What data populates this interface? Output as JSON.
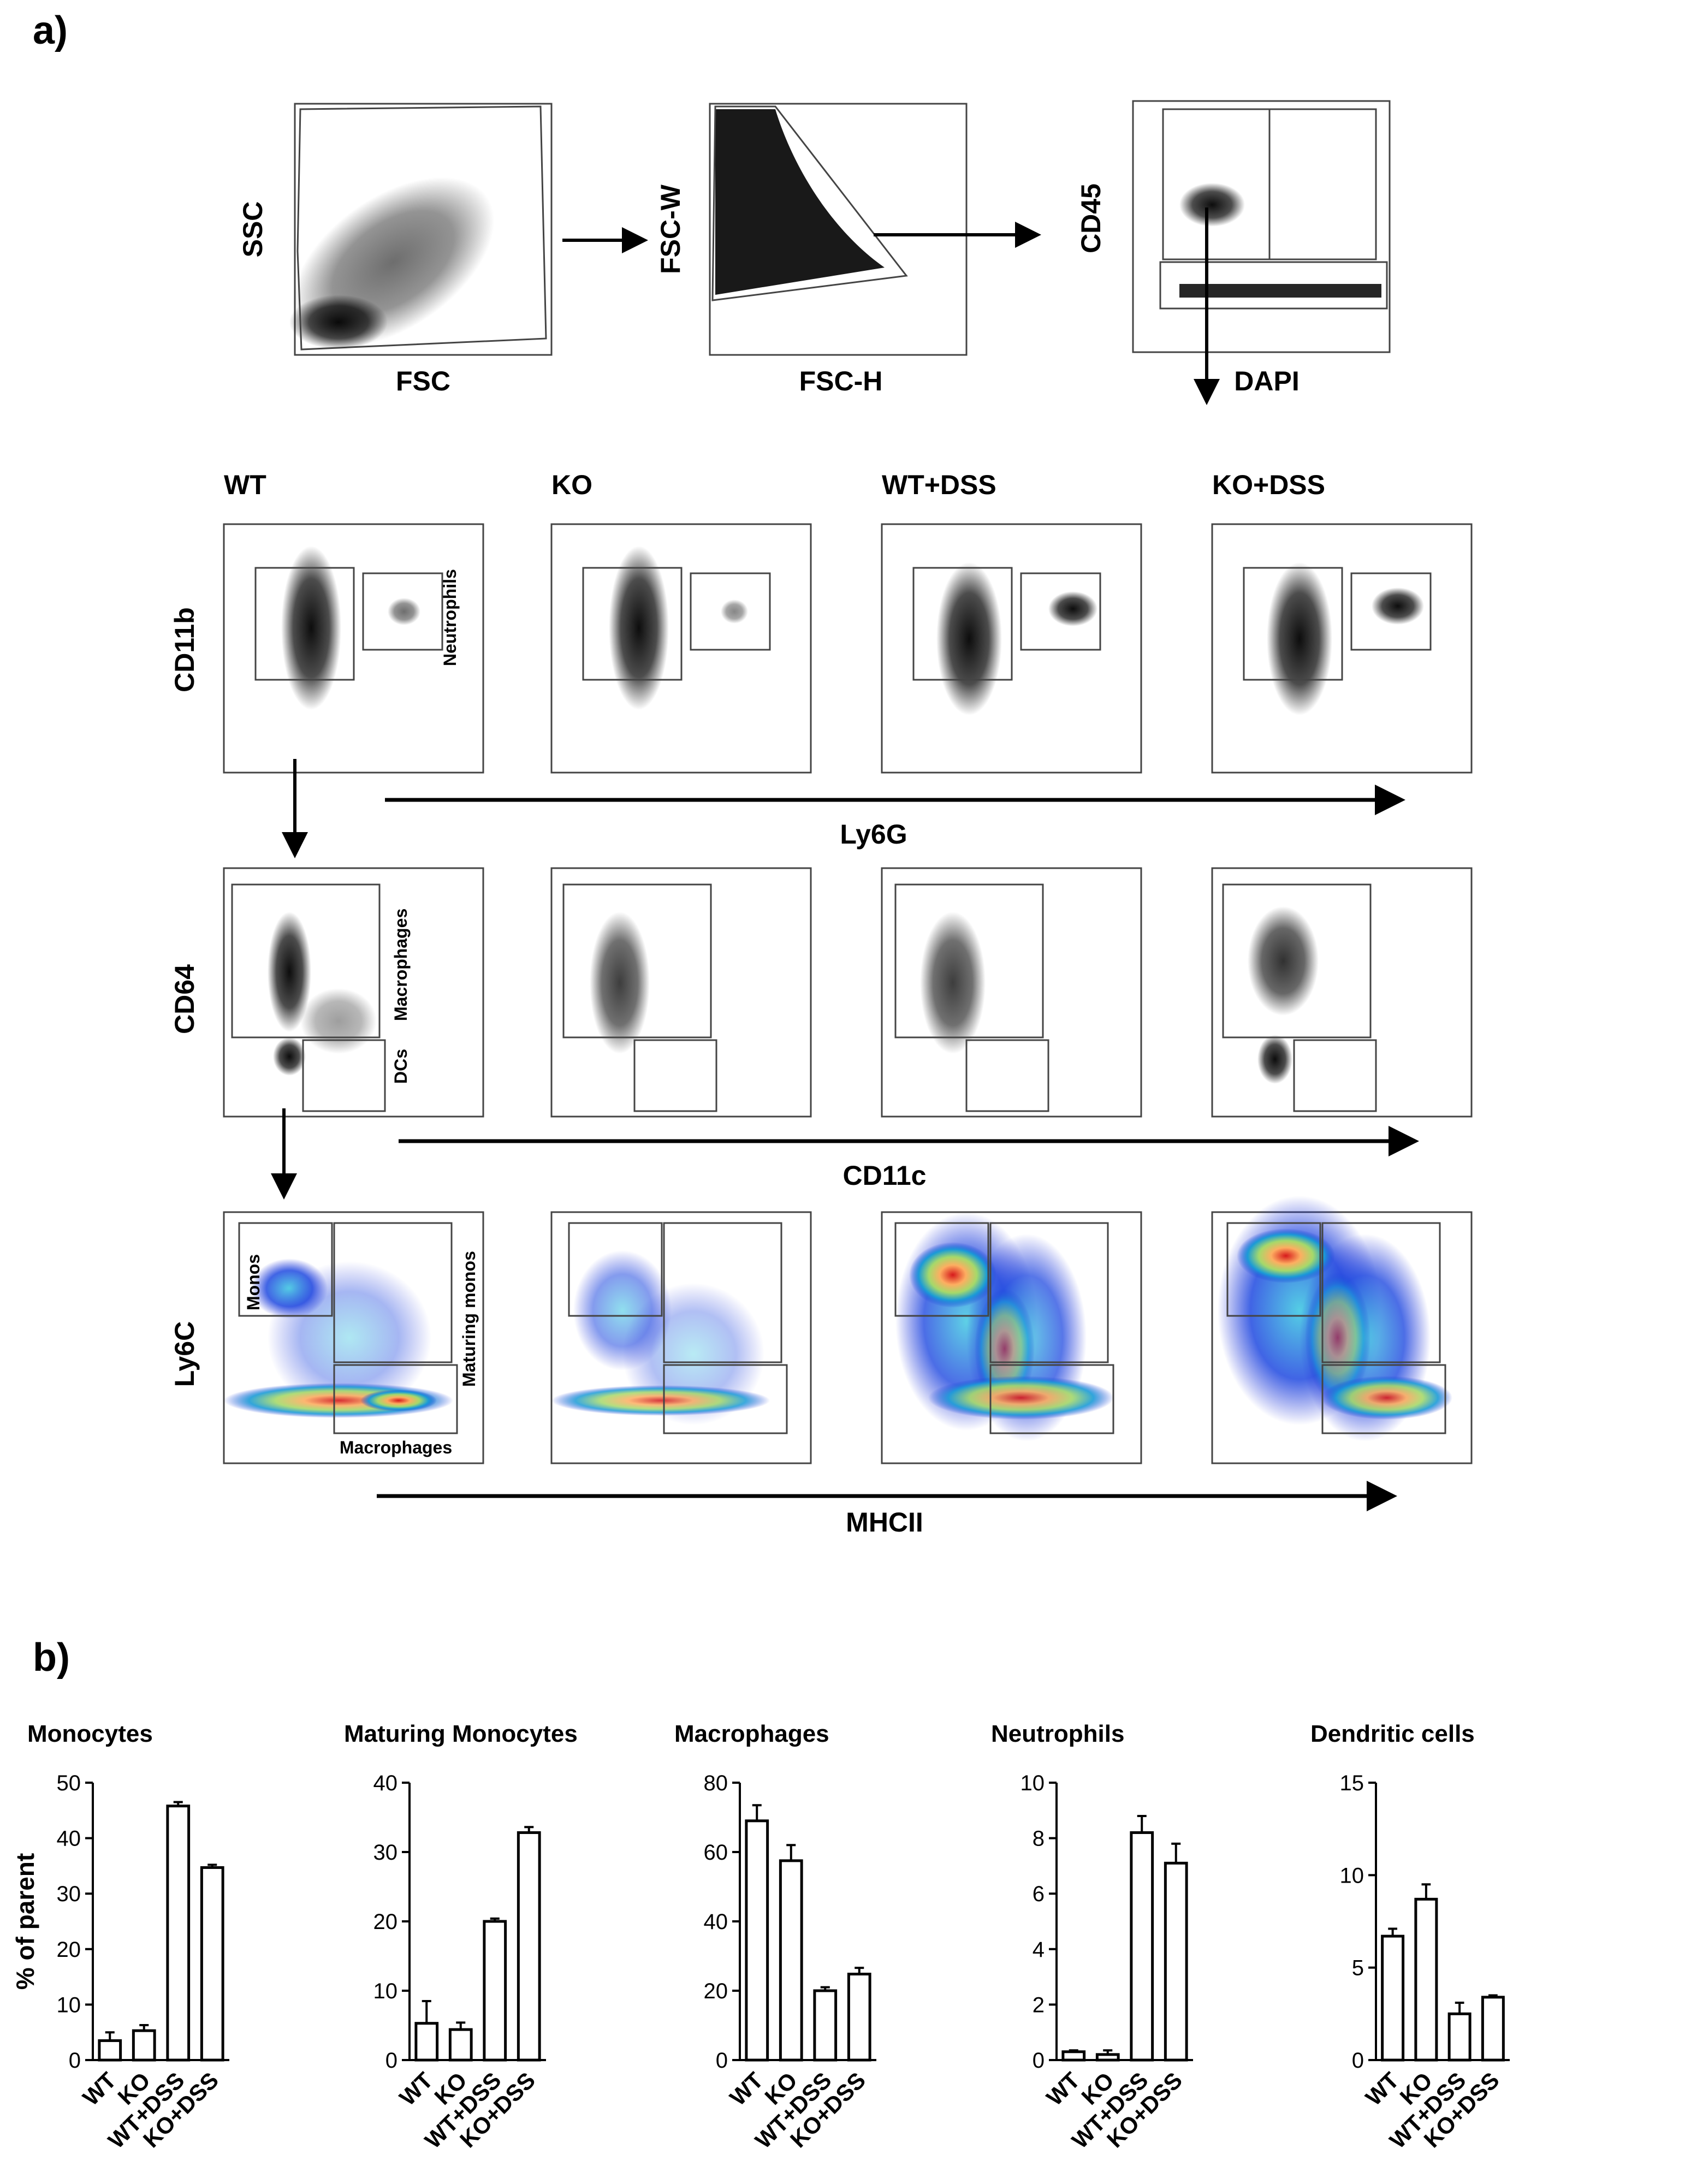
{
  "panel_labels": {
    "a": "a)",
    "b": "b)"
  },
  "gating": {
    "row1": [
      {
        "x": "FSC",
        "y": "SSC"
      },
      {
        "x": "FSC-H",
        "y": "FSC-W"
      },
      {
        "x": "DAPI",
        "y": "CD45"
      }
    ],
    "conditions": [
      "WT",
      "KO",
      "WT+DSS",
      "KO+DSS"
    ],
    "row2": {
      "x": "Ly6G",
      "y": "CD11b",
      "gate_label": "Neutrophils"
    },
    "row3": {
      "x": "CD11c",
      "y": "CD64",
      "gate_labels": [
        "Macrophages",
        "DCs"
      ]
    },
    "row4": {
      "x": "MHCII",
      "y": "Ly6C",
      "gate_labels": [
        "Monos",
        "Maturing monos",
        "Macrophages"
      ]
    }
  },
  "chart_data": [
    {
      "type": "bar",
      "title": "Monocytes",
      "ylabel": "% of parent",
      "categories": [
        "WT",
        "KO",
        "WT+DSS",
        "KO+DSS"
      ],
      "values": [
        3.5,
        5.3,
        45.8,
        34.7
      ],
      "errors": [
        1.5,
        1.0,
        0.7,
        0.5
      ],
      "ylim": [
        0,
        50
      ],
      "yticks": [
        "0",
        "10",
        "20",
        "30",
        "40",
        "50"
      ]
    },
    {
      "type": "bar",
      "title": "Maturing Monocytes",
      "ylabel": "",
      "categories": [
        "WT",
        "KO",
        "WT+DSS",
        "KO+DSS"
      ],
      "values": [
        5.3,
        4.4,
        20.0,
        32.8
      ],
      "errors": [
        3.2,
        1.0,
        0.4,
        0.8
      ],
      "ylim": [
        0,
        40
      ],
      "yticks": [
        "0",
        "10",
        "20",
        "30",
        "40"
      ]
    },
    {
      "type": "bar",
      "title": "Macrophages",
      "ylabel": "",
      "categories": [
        "WT",
        "KO",
        "WT+DSS",
        "KO+DSS"
      ],
      "values": [
        69.0,
        57.5,
        20.0,
        24.8
      ],
      "errors": [
        4.5,
        4.5,
        1.0,
        1.8
      ],
      "ylim": [
        0,
        80
      ],
      "yticks": [
        "0",
        "20",
        "40",
        "60",
        "80"
      ]
    },
    {
      "type": "bar",
      "title": "Neutrophils",
      "ylabel": "",
      "categories": [
        "WT",
        "KO",
        "WT+DSS",
        "KO+DSS"
      ],
      "values": [
        0.3,
        0.2,
        8.2,
        7.1
      ],
      "errors": [
        0.05,
        0.15,
        0.6,
        0.7
      ],
      "ylim": [
        0,
        10
      ],
      "yticks": [
        "0",
        "2",
        "4",
        "6",
        "8",
        "10"
      ]
    },
    {
      "type": "bar",
      "title": "Dendritic cells",
      "ylabel": "",
      "categories": [
        "WT",
        "KO",
        "WT+DSS",
        "KO+DSS"
      ],
      "values": [
        6.7,
        8.7,
        2.5,
        3.4
      ],
      "errors": [
        0.4,
        0.8,
        0.6,
        0.1
      ],
      "ylim": [
        0,
        15
      ],
      "yticks": [
        "0",
        "5",
        "10",
        "15"
      ]
    }
  ]
}
